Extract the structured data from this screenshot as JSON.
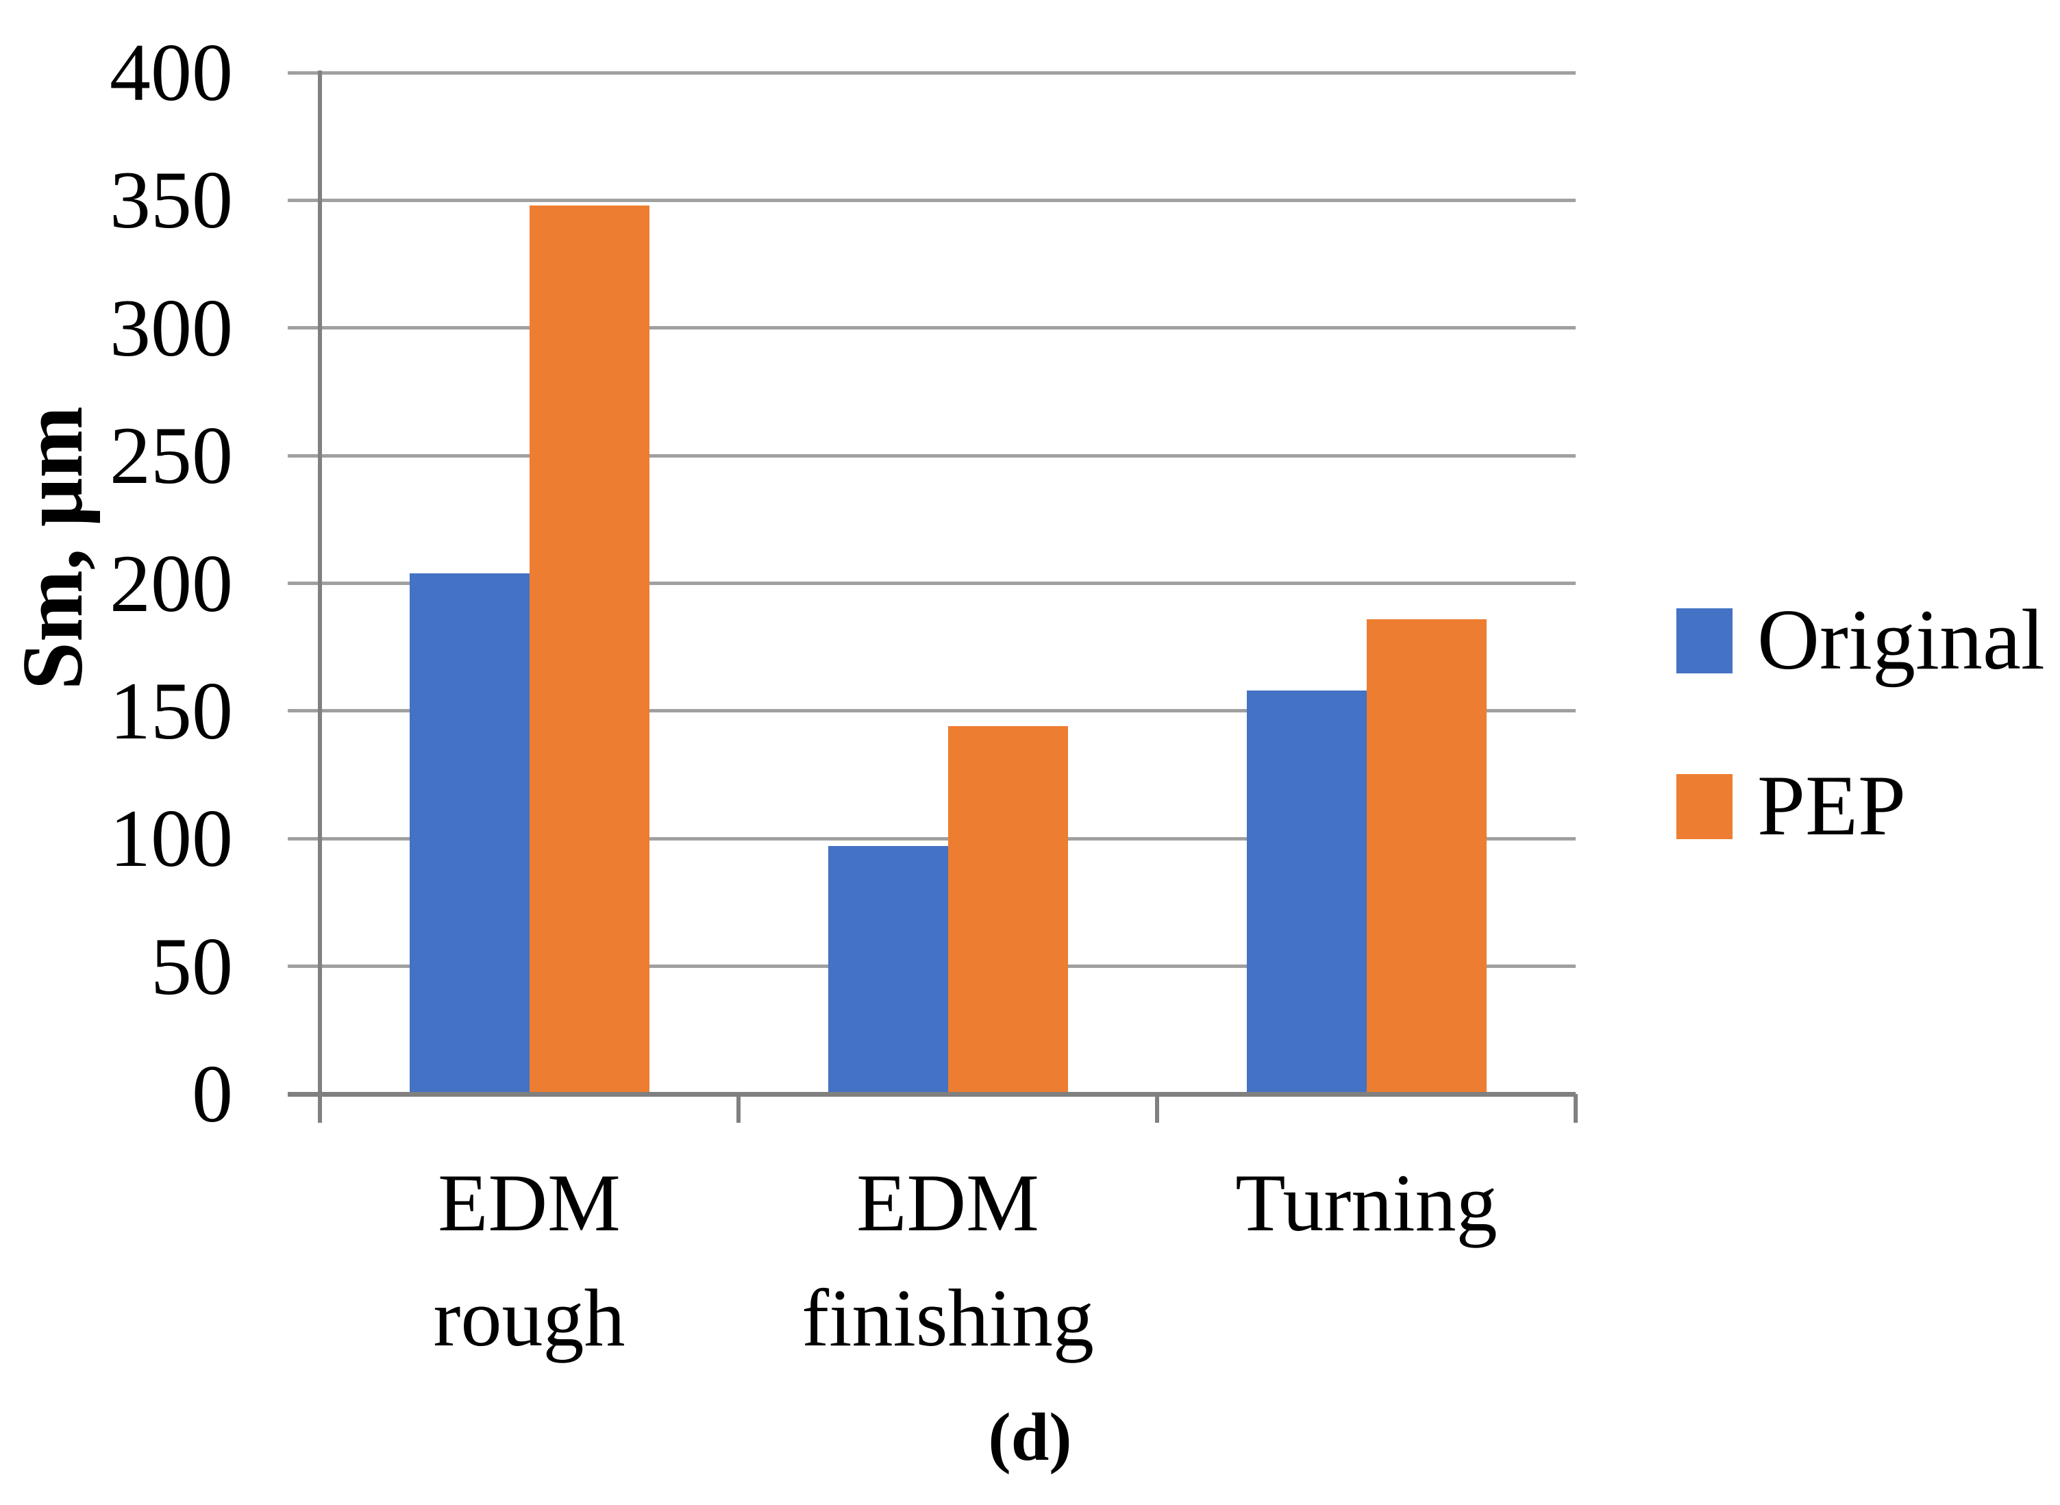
{
  "figure": {
    "caption": "(d)"
  },
  "chart_data": {
    "type": "bar",
    "title": "",
    "xlabel": "",
    "ylabel": "Sm, μm",
    "categories": [
      "EDM rough",
      "EDM finishing",
      "Turning"
    ],
    "series": [
      {
        "name": "Original",
        "color": "#4472C4",
        "values": [
          204,
          97,
          158
        ]
      },
      {
        "name": "PEP",
        "color": "#ED7D31",
        "values": [
          348,
          144,
          186
        ]
      }
    ],
    "ylim": [
      0,
      400
    ],
    "ytick_step": 50,
    "yticks": [
      0,
      50,
      100,
      150,
      200,
      250,
      300,
      350,
      400
    ],
    "grid": "horizontal-gridlines-on",
    "legend_position": "right"
  },
  "colors": {
    "gridline": "#A0A0A0",
    "axis": "#808080",
    "text": "#000000",
    "background": "#FFFFFF"
  }
}
